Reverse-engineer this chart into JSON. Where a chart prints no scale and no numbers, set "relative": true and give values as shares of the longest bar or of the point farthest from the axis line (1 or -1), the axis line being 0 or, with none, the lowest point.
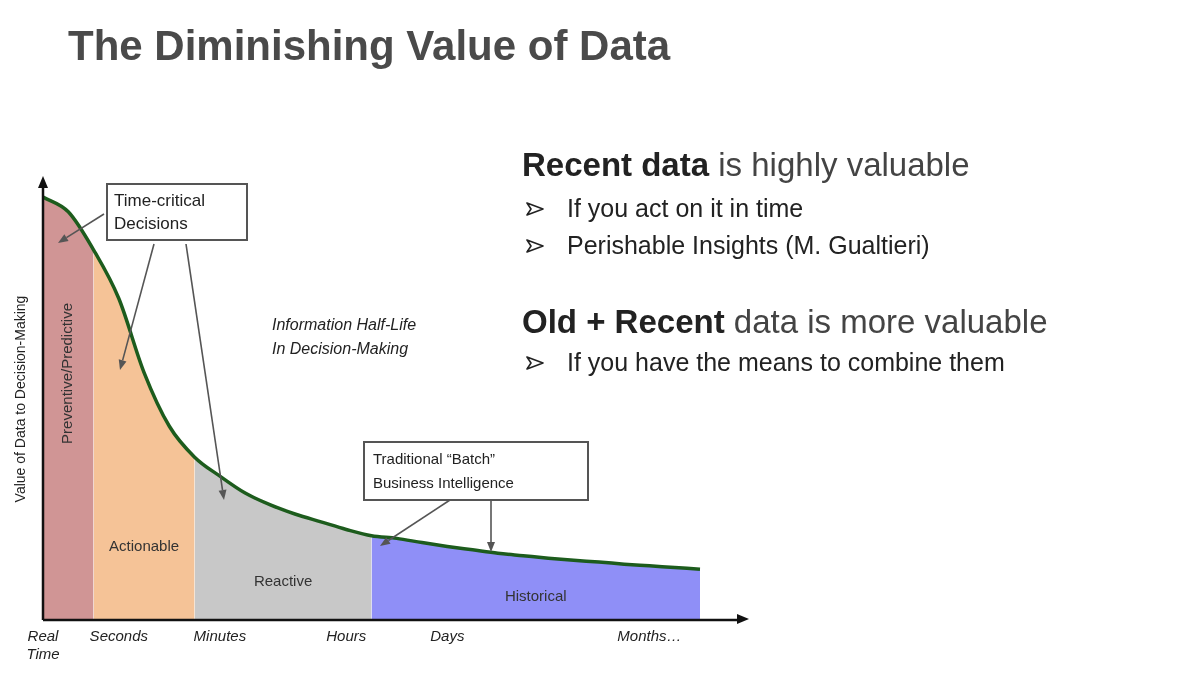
{
  "chart_data": {
    "type": "area",
    "title": "The Diminishing Value of Data",
    "ylabel": "Value of Data to Decision-Making",
    "relative": true,
    "categories": [
      "Real Time",
      null,
      null,
      "Seconds",
      null,
      null,
      null,
      "Minutes",
      null,
      null,
      null,
      null,
      "Hours",
      null,
      null,
      null,
      "Days",
      null,
      null,
      null,
      null,
      null,
      null,
      null,
      "Months…",
      null,
      null
    ],
    "series": [
      {
        "name": "Preventive/Predictive",
        "color": "#d09595",
        "values": [
          1.0,
          0.965,
          0.875,
          null,
          null,
          null,
          null,
          null,
          null,
          null,
          null,
          null,
          null,
          null,
          null,
          null,
          null,
          null,
          null,
          null,
          null,
          null,
          null,
          null,
          null,
          null,
          null
        ]
      },
      {
        "name": "Actionable",
        "color": "#f5c397",
        "values": [
          null,
          null,
          0.875,
          0.76,
          0.585,
          0.458,
          0.385,
          null,
          null,
          null,
          null,
          null,
          null,
          null,
          null,
          null,
          null,
          null,
          null,
          null,
          null,
          null,
          null,
          null,
          null,
          null,
          null
        ]
      },
      {
        "name": "Reactive",
        "color": "#c8c8c8",
        "values": [
          null,
          null,
          null,
          null,
          null,
          null,
          0.385,
          0.34,
          0.3,
          0.272,
          0.25,
          0.232,
          0.214,
          0.199,
          null,
          null,
          null,
          null,
          null,
          null,
          null,
          null,
          null,
          null,
          null,
          null,
          null
        ]
      },
      {
        "name": "Historical",
        "color": "#8f8ff7",
        "values": [
          null,
          null,
          null,
          null,
          null,
          null,
          null,
          null,
          null,
          null,
          null,
          null,
          null,
          0.199,
          0.193,
          0.183,
          0.174,
          0.166,
          0.158,
          0.152,
          0.146,
          0.141,
          0.137,
          0.132,
          0.128,
          0.124,
          0.12
        ]
      },
      {
        "type": "line",
        "color": "#1d5c1d",
        "values": [
          1.0,
          0.965,
          0.875,
          0.76,
          0.585,
          0.458,
          0.385,
          0.34,
          0.3,
          0.272,
          0.25,
          0.232,
          0.214,
          0.199,
          0.193,
          0.183,
          0.174,
          0.166,
          0.158,
          0.152,
          0.146,
          0.141,
          0.137,
          0.132,
          0.128,
          0.124,
          0.12
        ]
      }
    ],
    "annotations": [
      "Time-critical Decisions",
      "Information Half-Life In Decision-Making",
      "Traditional “Batch” Business Intelligence",
      "Recent data",
      "is highly valuable",
      "If you act on it in time",
      "Perishable Insights (M. Gualtieri)",
      "Old + Recent",
      "data is more valuable",
      "If you have the means to combine them"
    ]
  }
}
